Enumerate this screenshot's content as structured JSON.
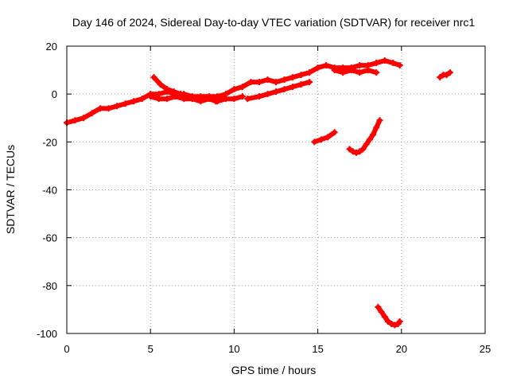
{
  "chart_data": {
    "type": "scatter",
    "title": "Day 146 of 2024, Sidereal Day-to-day VTEC variation (SDTVAR) for receiver nrc1",
    "xlabel": "GPS time / hours",
    "ylabel": "SDTVAR / TECUs",
    "xlim": [
      0,
      25
    ],
    "ylim": [
      -100,
      20
    ],
    "x_ticks": [
      0,
      5,
      10,
      15,
      20,
      25
    ],
    "y_ticks": [
      -100,
      -80,
      -60,
      -40,
      -20,
      0,
      20
    ],
    "grid": true,
    "legend": "none",
    "series": [
      {
        "color": "#ff0000",
        "segments": [
          {
            "x": [
              0.0,
              0.5,
              1.0,
              1.5,
              2.0,
              2.5,
              3.0,
              3.5,
              4.0,
              4.5,
              5.0,
              5.5,
              6.0,
              6.5,
              7.0,
              7.5,
              8.0,
              8.5,
              9.0,
              9.5,
              10.0,
              10.5,
              11.0,
              11.5,
              12.0,
              12.5,
              13.0,
              13.5,
              14.0,
              14.5,
              15.0,
              15.5,
              16.0,
              16.5,
              17.0,
              17.5,
              18.0,
              18.5,
              19.0,
              19.5,
              19.9
            ],
            "y": [
              -12,
              -11,
              -10,
              -8,
              -6,
              -6,
              -5,
              -4,
              -3,
              -2,
              0,
              0,
              1,
              0,
              0,
              -1,
              -1,
              -1,
              -1,
              0,
              2,
              3,
              5,
              5,
              6,
              5,
              6,
              7,
              8,
              9,
              11,
              12,
              11,
              11,
              11,
              12,
              12,
              13,
              14,
              13,
              12
            ]
          },
          {
            "x": [
              5.2,
              5.6,
              6.0,
              6.4,
              6.8
            ],
            "y": [
              7,
              4,
              2,
              1,
              0
            ]
          },
          {
            "x": [
              5.0,
              5.5,
              6.0,
              6.5,
              7.0,
              7.5,
              8.0,
              8.5,
              8.9
            ],
            "y": [
              -1,
              -2,
              -2,
              -1,
              -2,
              -2,
              -3,
              -2,
              -3
            ]
          },
          {
            "x": [
              9.0,
              9.5,
              10.0,
              10.5
            ],
            "y": [
              -3,
              -2,
              -2,
              -1
            ]
          },
          {
            "x": [
              10.8,
              11.5,
              12.0,
              12.5,
              13.0,
              13.5,
              14.0,
              14.5
            ],
            "y": [
              -2,
              -1,
              0,
              1,
              2,
              3,
              4,
              5
            ]
          },
          {
            "x": [
              16.0,
              16.5,
              17.0,
              17.5,
              18.0,
              18.5
            ],
            "y": [
              10,
              9,
              10,
              9,
              10,
              9
            ]
          },
          {
            "x": [
              14.8,
              15.2,
              15.6,
              16.0
            ],
            "y": [
              -20,
              -19,
              -18,
              -16
            ]
          },
          {
            "x": [
              16.9,
              17.1,
              17.3,
              17.5,
              17.7,
              17.9,
              18.1,
              18.3,
              18.5,
              18.7
            ],
            "y": [
              -23,
              -24,
              -24.5,
              -24,
              -23,
              -21,
              -19,
              -17,
              -14,
              -11
            ]
          },
          {
            "x": [
              18.6,
              18.8,
              19.0,
              19.2,
              19.4,
              19.6,
              19.8,
              19.9
            ],
            "y": [
              -89,
              -91,
              -93,
              -95,
              -96,
              -96.5,
              -96,
              -95
            ]
          },
          {
            "x": [
              22.3,
              22.5,
              22.7,
              22.9
            ],
            "y": [
              7,
              8,
              8,
              9
            ]
          }
        ]
      }
    ]
  }
}
